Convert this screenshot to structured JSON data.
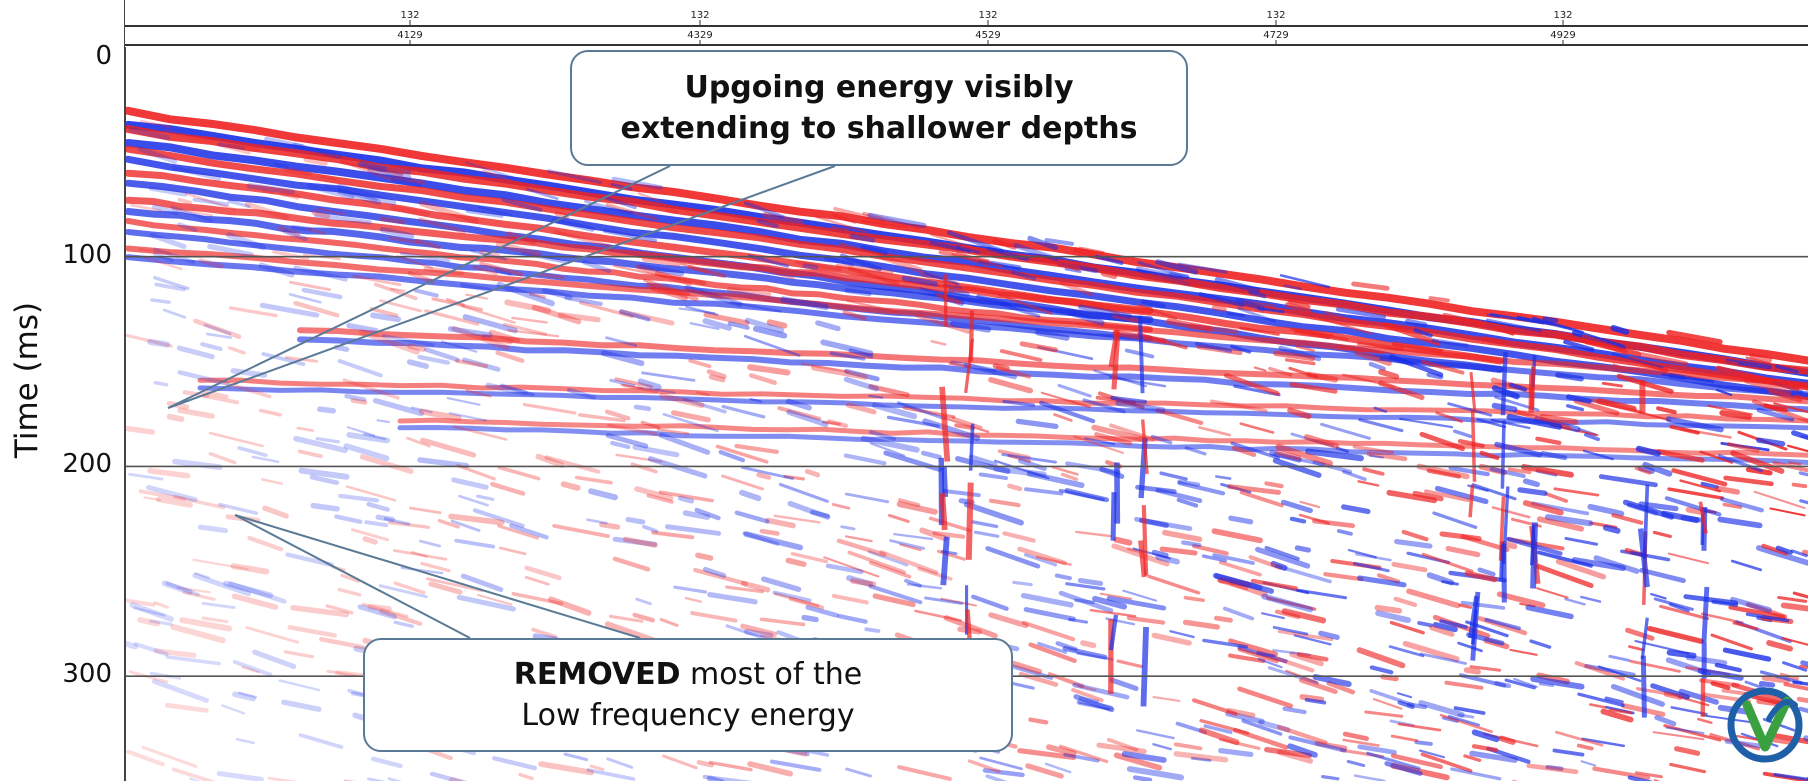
{
  "chart_data": {
    "type": "heatmap",
    "title": "",
    "xlabel": "",
    "ylabel": "Time (ms)",
    "y_ticks": [
      "0",
      "100",
      "200",
      "300"
    ],
    "ylim": [
      350,
      0
    ],
    "x_axis_rows": [
      [
        "132",
        "132",
        "132",
        "132",
        "132"
      ],
      [
        "4129",
        "4329",
        "4529",
        "4729",
        "4929"
      ]
    ],
    "colors": {
      "positive": "#ee2222",
      "negative": "#1a2fe6",
      "zero": "#ffffff"
    },
    "grid": true
  },
  "annotations": {
    "upgoing": [
      "Upgoing energy visibly",
      "extending to shallower depths"
    ],
    "removed_bold": "REMOVED",
    "removed_rest": " most of the",
    "removed_line2": "Low frequency energy"
  },
  "logo_icon": "v-leaf-logo-icon"
}
